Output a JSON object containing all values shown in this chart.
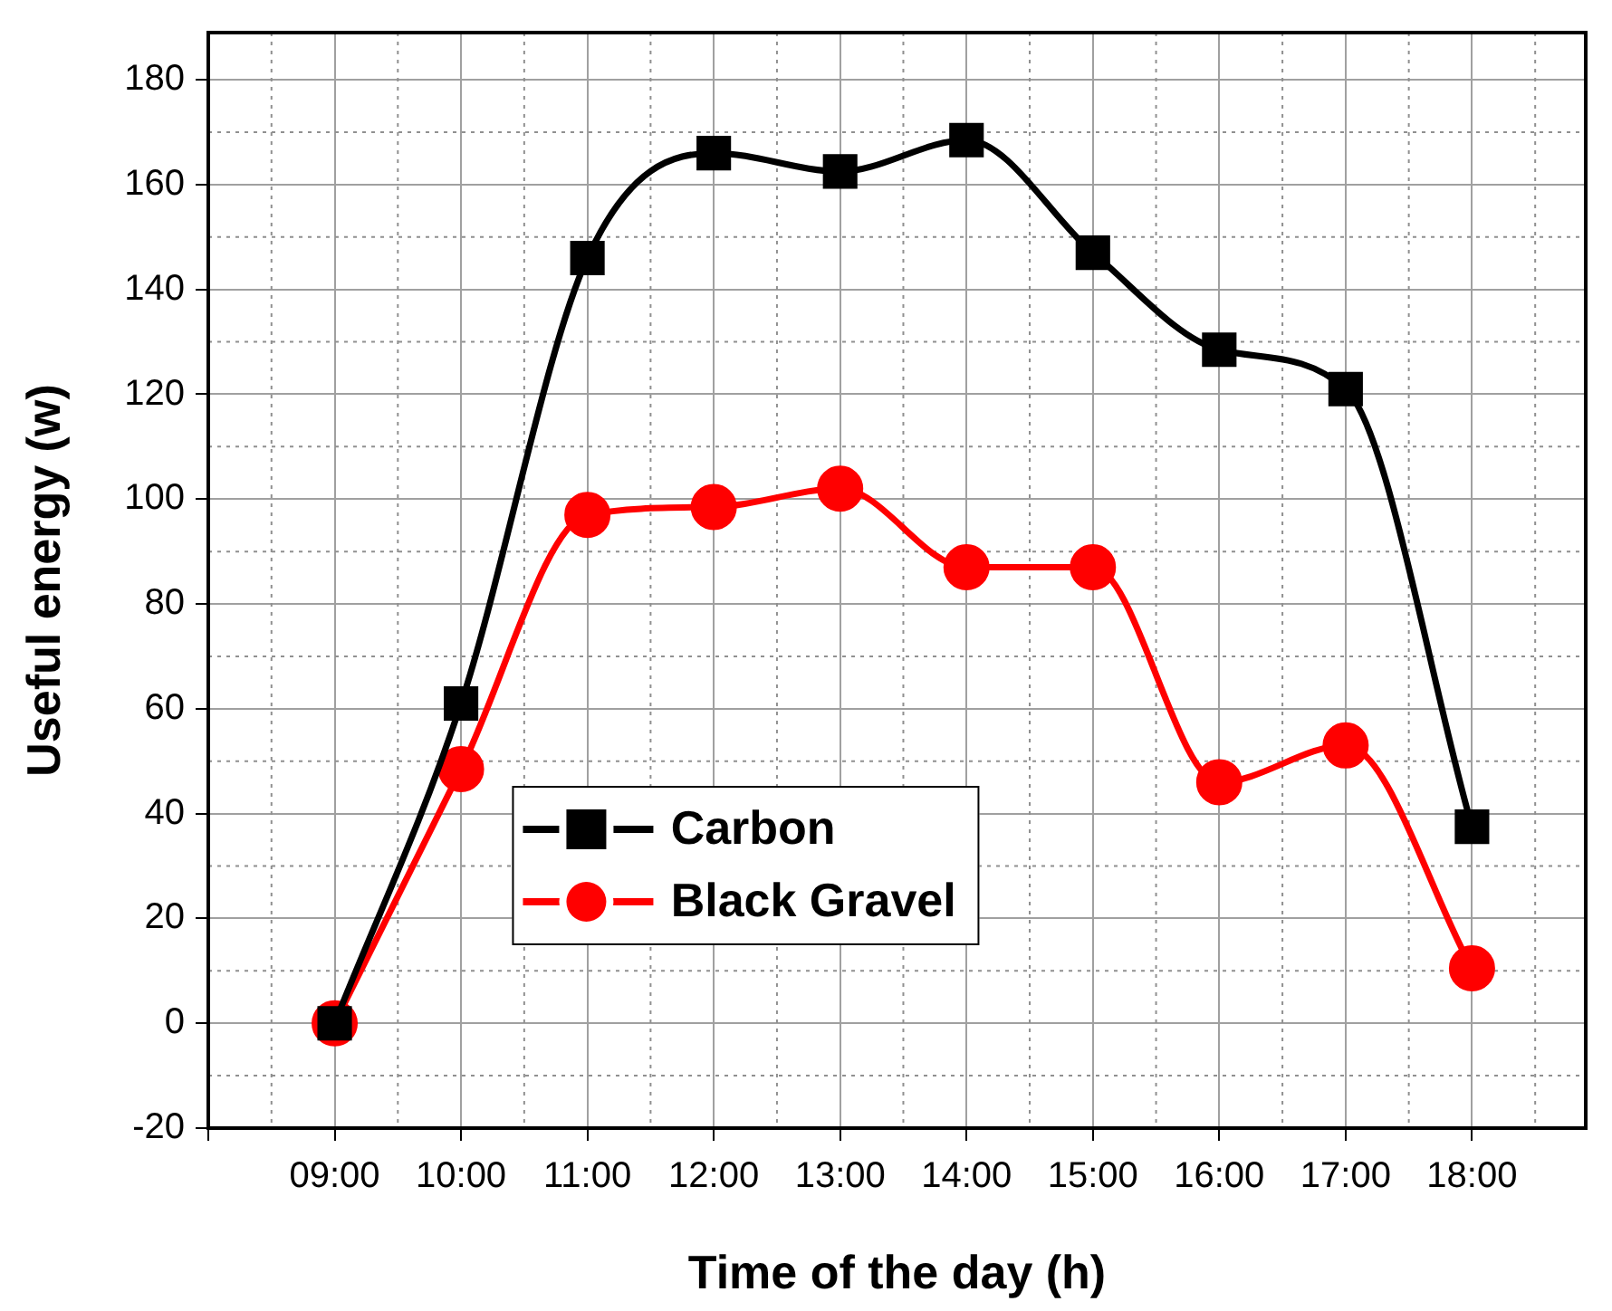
{
  "chart_data": {
    "type": "line",
    "xlabel": "Time of the day (h)",
    "ylabel": "Useful energy (w)",
    "x": [
      9,
      10,
      11,
      12,
      13,
      14,
      15,
      16,
      17,
      18
    ],
    "xlim": [
      8,
      18.9
    ],
    "xticks": [
      {
        "value": 8,
        "label": null
      },
      {
        "value": 9,
        "label": "09:00"
      },
      {
        "value": 10,
        "label": "10:00"
      },
      {
        "value": 11,
        "label": "11:00"
      },
      {
        "value": 12,
        "label": "12:00"
      },
      {
        "value": 13,
        "label": "13:00"
      },
      {
        "value": 14,
        "label": "14:00"
      },
      {
        "value": 15,
        "label": "15:00"
      },
      {
        "value": 16,
        "label": "16:00"
      },
      {
        "value": 17,
        "label": "17:00"
      },
      {
        "value": 18,
        "label": "18:00"
      }
    ],
    "ylim": [
      -20,
      189
    ],
    "yticks": [
      -20,
      0,
      20,
      40,
      60,
      80,
      100,
      120,
      140,
      160,
      180
    ],
    "series": [
      {
        "name": "Carbon",
        "color": "#000000",
        "marker": "square",
        "values": [
          0,
          61,
          146,
          166,
          162.5,
          168.5,
          147,
          128.5,
          121,
          37.5
        ]
      },
      {
        "name": "Black Gravel",
        "color": "#ff0000",
        "marker": "circle",
        "values": [
          0,
          48.5,
          97,
          98.5,
          102,
          87,
          87,
          46,
          53,
          10.5
        ]
      }
    ],
    "grid": true,
    "legend": "center",
    "line_style": "solid"
  }
}
